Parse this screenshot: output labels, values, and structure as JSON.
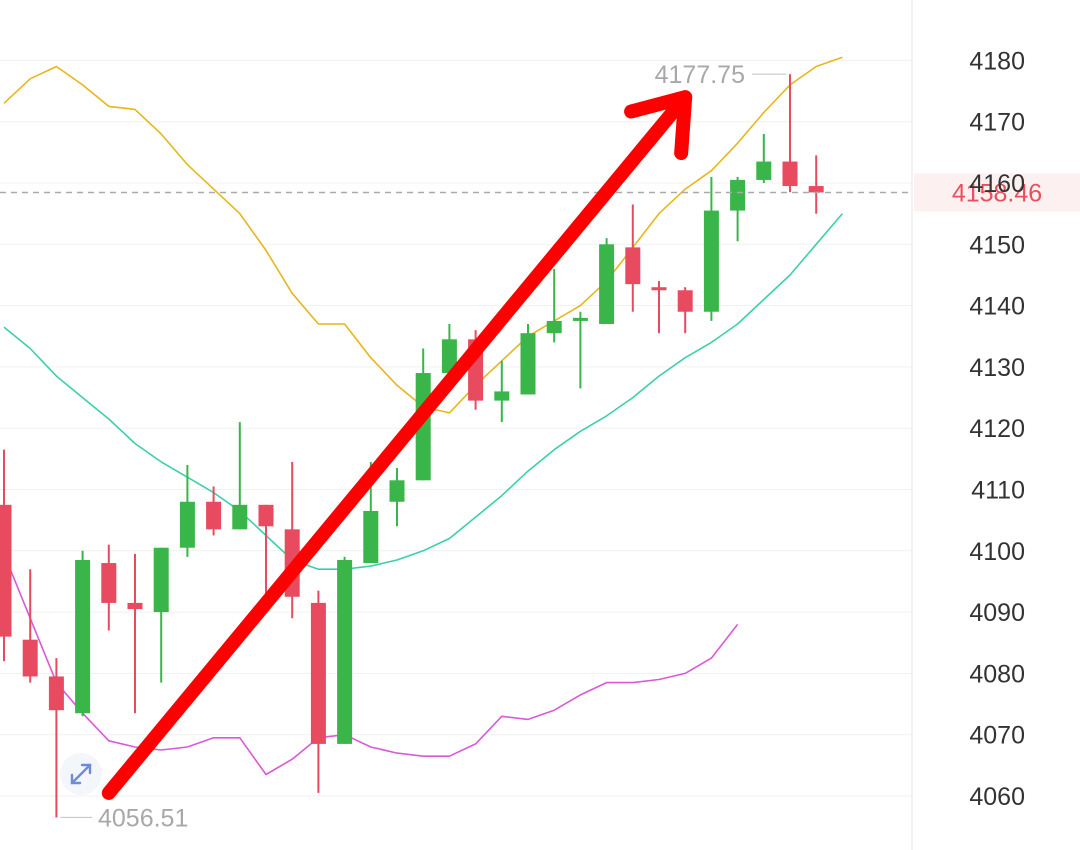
{
  "chart_data": {
    "type": "candlestick",
    "y_axis": {
      "range": [
        4055,
        4185
      ],
      "ticks": [
        4060,
        4070,
        4080,
        4090,
        4100,
        4110,
        4120,
        4130,
        4140,
        4150,
        4160,
        4170,
        4180
      ],
      "position": "right"
    },
    "grid": true,
    "candles": [
      {
        "o": 4107.5,
        "c": 4086.0,
        "h": 4116.5,
        "l": 4082.0
      },
      {
        "o": 4085.5,
        "c": 4079.5,
        "h": 4097.0,
        "l": 4078.5
      },
      {
        "o": 4079.5,
        "c": 4074.0,
        "h": 4082.5,
        "l": 4056.5
      },
      {
        "o": 4073.5,
        "c": 4098.5,
        "h": 4100.0,
        "l": 4073.0
      },
      {
        "o": 4098.0,
        "c": 4091.5,
        "h": 4101.0,
        "l": 4087.0
      },
      {
        "o": 4091.5,
        "c": 4090.5,
        "h": 4099.5,
        "l": 4073.5
      },
      {
        "o": 4090.0,
        "c": 4100.5,
        "h": 4100.5,
        "l": 4078.5
      },
      {
        "o": 4100.5,
        "c": 4108.0,
        "h": 4114.0,
        "l": 4099.0
      },
      {
        "o": 4108.0,
        "c": 4103.5,
        "h": 4110.5,
        "l": 4102.5
      },
      {
        "o": 4103.5,
        "c": 4107.5,
        "h": 4121.0,
        "l": 4103.5
      },
      {
        "o": 4107.5,
        "c": 4104.0,
        "h": 4107.5,
        "l": 4091.5
      },
      {
        "o": 4103.5,
        "c": 4092.5,
        "h": 4114.5,
        "l": 4089.0
      },
      {
        "o": 4091.5,
        "c": 4068.5,
        "h": 4093.5,
        "l": 4060.5
      },
      {
        "o": 4068.5,
        "c": 4098.5,
        "h": 4099.0,
        "l": 4068.5
      },
      {
        "o": 4098.0,
        "c": 4106.5,
        "h": 4114.5,
        "l": 4098.0
      },
      {
        "o": 4108.0,
        "c": 4111.5,
        "h": 4113.5,
        "l": 4104.0
      },
      {
        "o": 4111.5,
        "c": 4129.0,
        "h": 4133.0,
        "l": 4111.5
      },
      {
        "o": 4129.0,
        "c": 4134.5,
        "h": 4137.0,
        "l": 4126.5
      },
      {
        "o": 4134.5,
        "c": 4124.5,
        "h": 4136.0,
        "l": 4123.0
      },
      {
        "o": 4124.5,
        "c": 4126.0,
        "h": 4131.0,
        "l": 4121.0
      },
      {
        "o": 4125.5,
        "c": 4135.5,
        "h": 4137.0,
        "l": 4125.5
      },
      {
        "o": 4135.5,
        "c": 4137.5,
        "h": 4146.0,
        "l": 4134.0
      },
      {
        "o": 4137.5,
        "c": 4138.0,
        "h": 4139.0,
        "l": 4126.5
      },
      {
        "o": 4137.0,
        "c": 4150.0,
        "h": 4151.0,
        "l": 4137.0
      },
      {
        "o": 4149.5,
        "c": 4143.5,
        "h": 4156.5,
        "l": 4139.0
      },
      {
        "o": 4143.0,
        "c": 4142.5,
        "h": 4144.0,
        "l": 4135.5
      },
      {
        "o": 4142.5,
        "c": 4139.0,
        "h": 4143.0,
        "l": 4135.5
      },
      {
        "o": 4139.0,
        "c": 4155.5,
        "h": 4161.0,
        "l": 4137.5
      },
      {
        "o": 4155.5,
        "c": 4160.5,
        "h": 4161.0,
        "l": 4150.5
      },
      {
        "o": 4160.5,
        "c": 4163.5,
        "h": 4168.0,
        "l": 4160.0
      },
      {
        "o": 4163.5,
        "c": 4159.5,
        "h": 4177.75,
        "l": 4158.5
      },
      {
        "o": 4159.5,
        "c": 4158.46,
        "h": 4164.5,
        "l": 4155.0
      }
    ],
    "bands": [
      {
        "color": "#e8b61c",
        "values": [
          4173.0,
          4177.0,
          4179.0,
          4176.0,
          4172.5,
          4172.0,
          4168.0,
          4163.0,
          4159.0,
          4155.0,
          4149.0,
          4142.0,
          4137.0,
          4137.0,
          4131.5,
          4127.0,
          4123.5,
          4122.5,
          4127.0,
          4131.0,
          4135.0,
          4137.5,
          4140.0,
          4144.0,
          4149.5,
          4155.0,
          4159.0,
          4162.0,
          4166.5,
          4171.5,
          4176.0,
          4179.0,
          4180.5
        ]
      },
      {
        "color": "#3ccfac",
        "values": [
          4136.5,
          4133.0,
          4128.5,
          4125.0,
          4121.5,
          4117.5,
          4114.5,
          4112.0,
          4109.5,
          4106.5,
          4102.5,
          4098.5,
          4097.0,
          4097.0,
          4097.5,
          4098.5,
          4100.0,
          4102.0,
          4105.5,
          4109.0,
          4113.0,
          4116.5,
          4119.5,
          4122.0,
          4125.0,
          4128.5,
          4131.5,
          4134.0,
          4137.0,
          4141.0,
          4145.0,
          4150.0,
          4155.0
        ]
      },
      {
        "color": "#d85ad8",
        "values": [
          4099.5,
          4089.0,
          4078.5,
          4073.5,
          4069.0,
          4068.0,
          4067.5,
          4068.0,
          4069.5,
          4069.5,
          4063.5,
          4066.0,
          4069.5,
          4070.0,
          4068.0,
          4067.0,
          4066.5,
          4066.5,
          4068.5,
          4073.0,
          4072.5,
          4074.0,
          4076.5,
          4078.5,
          4078.5,
          4079.0,
          4080.0,
          4082.5,
          4088.0
        ]
      }
    ],
    "annotations": {
      "high_label": "4177.75",
      "low_label": "4056.51",
      "current_price": "4158.46",
      "arrow": {
        "from_index": 4,
        "from_value": 4060.5,
        "to_index": 26,
        "to_value": 4174.0,
        "color": "#ff0000"
      }
    },
    "colors": {
      "up": "#39b54a",
      "down": "#e84a5f",
      "grid": "#f1f1f1",
      "current": "#ea4f5b",
      "current_bg": "#fdf0f1"
    }
  }
}
